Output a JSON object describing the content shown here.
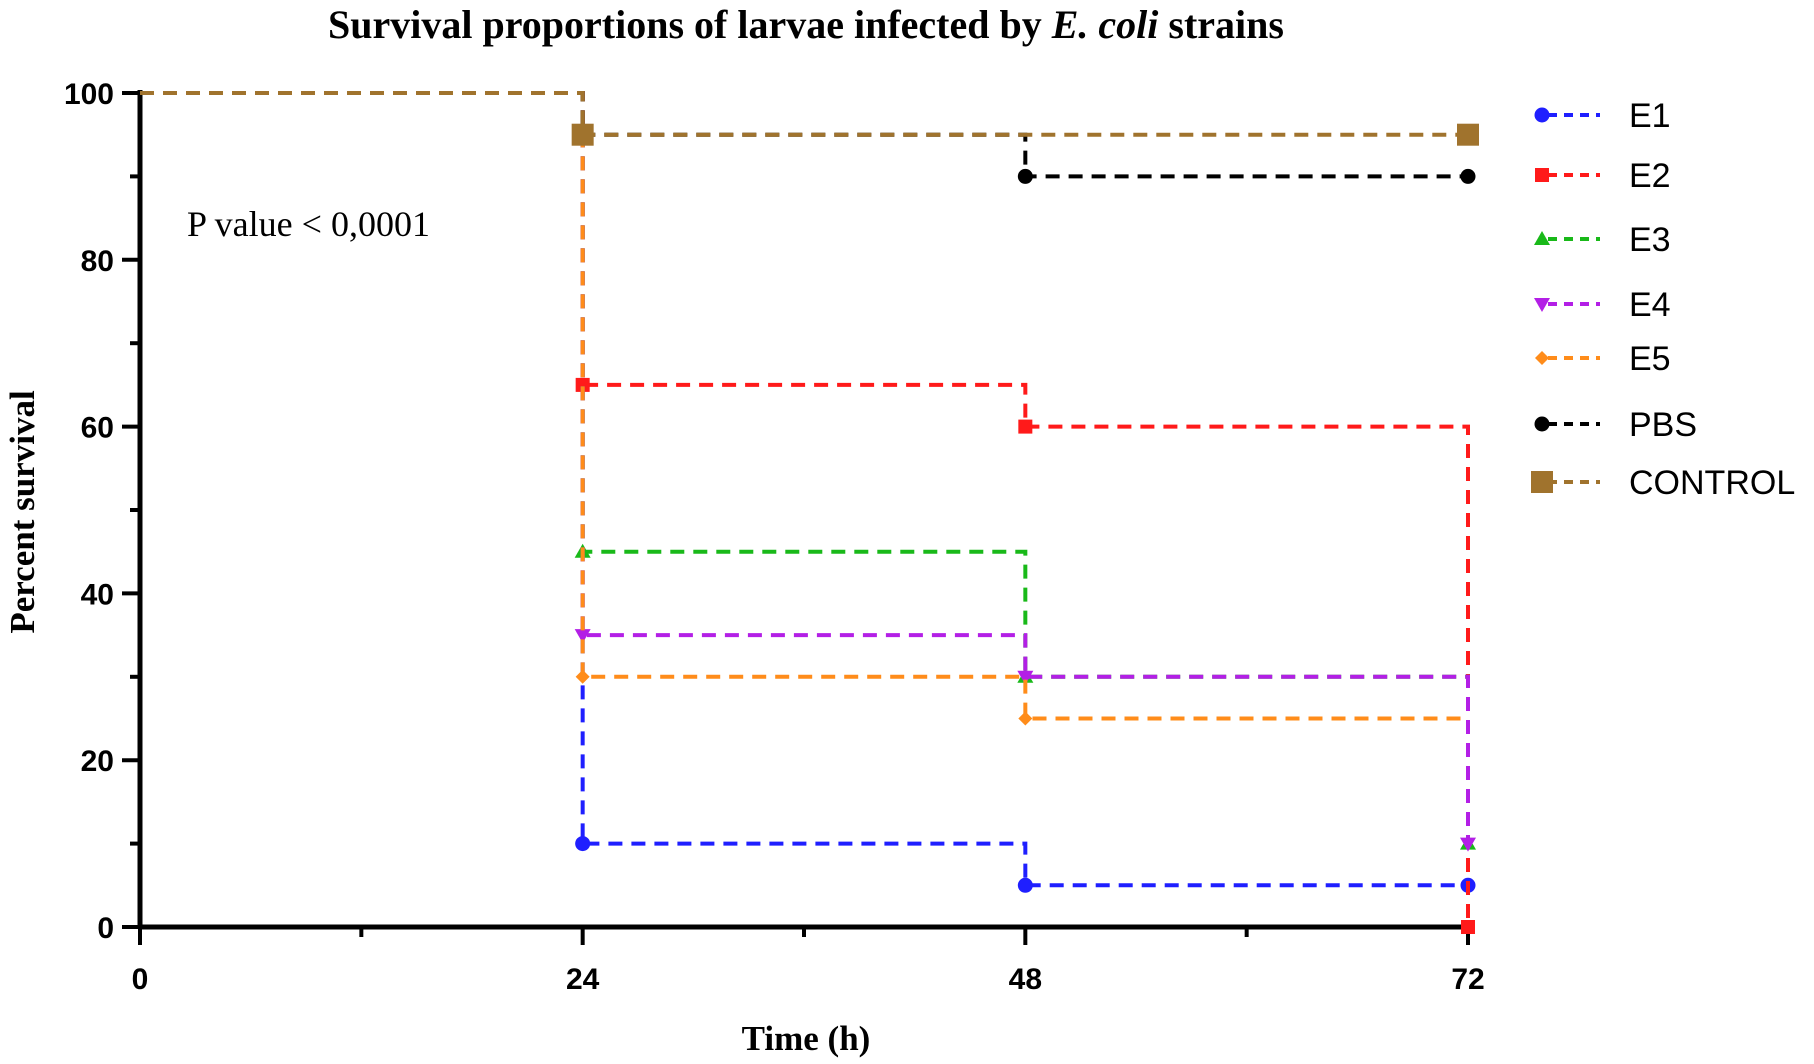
{
  "chart_data": {
    "type": "line",
    "style": "step",
    "title_parts": [
      {
        "text": "Survival proportions of larvae infected by ",
        "italic": false
      },
      {
        "text": "E. coli",
        "italic": true
      },
      {
        "text": " strains",
        "italic": false
      }
    ],
    "xlabel": "Time (h)",
    "ylabel": "Percent survival",
    "xlim": [
      0,
      72
    ],
    "ylim": [
      0,
      100
    ],
    "xticks": [
      0,
      24,
      48,
      72
    ],
    "yticks": [
      0,
      20,
      40,
      60,
      80,
      100
    ],
    "grid": false,
    "legend_position": "right",
    "annotation": "P value  <  0,0001",
    "series": [
      {
        "name": "E1",
        "color": "#1f1fff",
        "marker": "circle",
        "steps": [
          [
            0,
            100
          ],
          [
            24,
            10
          ],
          [
            48,
            5
          ],
          [
            72,
            5
          ]
        ],
        "markers": [
          [
            24,
            10
          ],
          [
            48,
            5
          ],
          [
            72,
            5
          ]
        ]
      },
      {
        "name": "E2",
        "color": "#ff1a1a",
        "marker": "square",
        "steps": [
          [
            0,
            100
          ],
          [
            24,
            65
          ],
          [
            48,
            60
          ],
          [
            72,
            0
          ]
        ],
        "markers": [
          [
            24,
            65
          ],
          [
            48,
            60
          ],
          [
            72,
            0
          ]
        ]
      },
      {
        "name": "E3",
        "color": "#19b919",
        "marker": "triangle-up",
        "steps": [
          [
            0,
            100
          ],
          [
            24,
            45
          ],
          [
            48,
            30
          ],
          [
            72,
            10
          ]
        ],
        "markers": [
          [
            24,
            45
          ],
          [
            48,
            30
          ],
          [
            72,
            10
          ]
        ]
      },
      {
        "name": "E4",
        "color": "#b31fe6",
        "marker": "triangle-down",
        "steps": [
          [
            0,
            100
          ],
          [
            24,
            35
          ],
          [
            48,
            30
          ],
          [
            72,
            10
          ]
        ],
        "markers": [
          [
            24,
            35
          ],
          [
            48,
            30
          ],
          [
            72,
            10
          ]
        ]
      },
      {
        "name": "E5",
        "color": "#ff8c1a",
        "marker": "diamond",
        "steps": [
          [
            0,
            100
          ],
          [
            24,
            30
          ],
          [
            48,
            25
          ],
          [
            72,
            25
          ]
        ],
        "markers": [
          [
            24,
            30
          ],
          [
            48,
            25
          ]
        ]
      },
      {
        "name": "PBS",
        "color": "#000000",
        "marker": "circle",
        "steps": [
          [
            0,
            100
          ],
          [
            24,
            95
          ],
          [
            48,
            90
          ],
          [
            72,
            90
          ]
        ],
        "markers": [
          [
            24,
            95
          ],
          [
            48,
            90
          ],
          [
            72,
            90
          ]
        ]
      },
      {
        "name": "CONTROL",
        "color": "#a0732d",
        "marker": "big-square",
        "steps": [
          [
            0,
            100
          ],
          [
            24,
            95
          ],
          [
            48,
            95
          ],
          [
            72,
            95
          ]
        ],
        "markers": [
          [
            24,
            95
          ],
          [
            72,
            95
          ]
        ]
      }
    ]
  }
}
